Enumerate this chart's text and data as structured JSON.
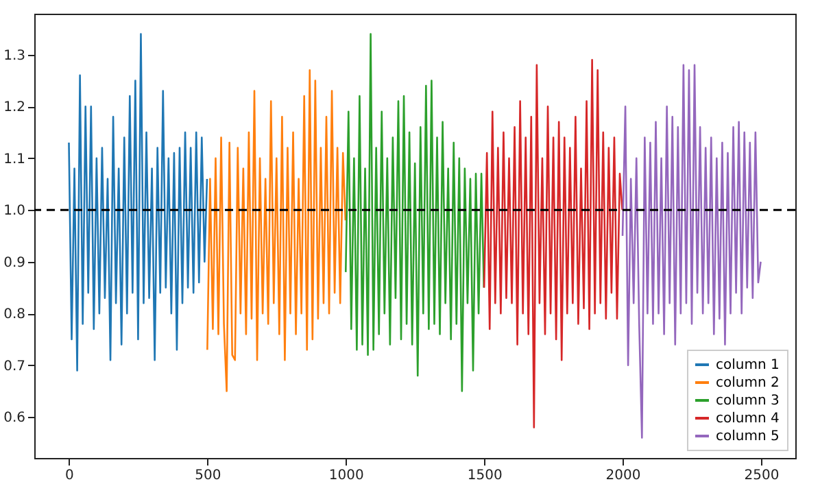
{
  "chart_data": {
    "type": "line",
    "xlim": [
      -125,
      2624
    ],
    "ylim": [
      0.521,
      1.379
    ],
    "xticks": [
      0,
      500,
      1000,
      1500,
      2000,
      2500
    ],
    "yticks": [
      0.6,
      0.7,
      0.8,
      0.9,
      {
        "value": 1,
        "label": "1.0"
      },
      1.1,
      1.2,
      1.3
    ],
    "grid": false,
    "legend": "bottom right",
    "line_style": "solid",
    "marker": "none",
    "ref_lines": [
      {
        "axis": "y",
        "value": 1.0,
        "color": "#000000",
        "line_style": "dashed"
      }
    ],
    "series": [
      {
        "name": "column 1",
        "color": "#1f77b4",
        "x": [
          0,
          10,
          20,
          30,
          40,
          50,
          60,
          70,
          80,
          90,
          100,
          110,
          120,
          130,
          140,
          150,
          160,
          170,
          180,
          190,
          200,
          210,
          220,
          230,
          240,
          250,
          260,
          270,
          280,
          290,
          300,
          310,
          320,
          330,
          340,
          350,
          360,
          370,
          380,
          390,
          400,
          410,
          420,
          430,
          440,
          450,
          460,
          470,
          480,
          490,
          499
        ],
        "values": [
          1.13,
          0.75,
          1.08,
          0.69,
          1.26,
          0.78,
          1.2,
          0.84,
          1.2,
          0.77,
          1.1,
          0.8,
          1.12,
          0.83,
          1.06,
          0.71,
          1.18,
          0.82,
          1.08,
          0.74,
          1.14,
          0.8,
          1.22,
          0.84,
          1.25,
          0.75,
          1.34,
          0.82,
          1.15,
          0.83,
          1.08,
          0.71,
          1.12,
          0.84,
          1.23,
          0.85,
          1.1,
          0.8,
          1.11,
          0.73,
          1.12,
          0.82,
          1.15,
          0.85,
          1.12,
          0.84,
          1.15,
          0.86,
          1.14,
          0.9,
          1.06
        ]
      },
      {
        "name": "column 2",
        "color": "#ff7f0e",
        "x": [
          500,
          510,
          520,
          530,
          540,
          550,
          560,
          570,
          580,
          590,
          600,
          610,
          620,
          630,
          640,
          650,
          660,
          670,
          680,
          690,
          700,
          710,
          720,
          730,
          740,
          750,
          760,
          770,
          780,
          790,
          800,
          810,
          820,
          830,
          840,
          850,
          860,
          870,
          880,
          890,
          900,
          910,
          920,
          930,
          940,
          950,
          960,
          970,
          980,
          990,
          999
        ],
        "values": [
          0.73,
          1.06,
          0.77,
          1.1,
          0.76,
          1.14,
          0.78,
          0.65,
          1.13,
          0.72,
          0.71,
          1.12,
          0.8,
          1.08,
          0.76,
          1.15,
          0.79,
          1.23,
          0.71,
          1.1,
          0.8,
          1.06,
          0.78,
          1.21,
          0.82,
          1.1,
          0.76,
          1.18,
          0.71,
          1.12,
          0.8,
          1.15,
          0.76,
          1.06,
          0.8,
          1.22,
          0.73,
          1.27,
          0.75,
          1.25,
          0.79,
          1.12,
          0.82,
          1.18,
          0.8,
          1.23,
          0.84,
          1.12,
          0.82,
          1.11,
          0.98
        ]
      },
      {
        "name": "column 3",
        "color": "#2ca02c",
        "x": [
          1000,
          1010,
          1020,
          1030,
          1040,
          1050,
          1060,
          1070,
          1080,
          1090,
          1100,
          1110,
          1120,
          1130,
          1140,
          1150,
          1160,
          1170,
          1180,
          1190,
          1200,
          1210,
          1220,
          1230,
          1240,
          1250,
          1260,
          1270,
          1280,
          1290,
          1300,
          1310,
          1320,
          1330,
          1340,
          1350,
          1360,
          1370,
          1380,
          1390,
          1400,
          1410,
          1420,
          1430,
          1440,
          1450,
          1460,
          1470,
          1480,
          1490,
          1499
        ],
        "values": [
          0.88,
          1.19,
          0.77,
          1.1,
          0.73,
          1.22,
          0.74,
          1.08,
          0.72,
          1.34,
          0.73,
          1.12,
          0.76,
          1.19,
          0.8,
          1.1,
          0.74,
          1.14,
          0.83,
          1.21,
          0.75,
          1.22,
          0.78,
          1.15,
          0.74,
          1.09,
          0.68,
          1.16,
          0.8,
          1.24,
          0.77,
          1.25,
          0.78,
          1.14,
          0.76,
          1.17,
          0.82,
          1.08,
          0.75,
          1.13,
          0.78,
          1.1,
          0.65,
          1.08,
          0.82,
          1.06,
          0.69,
          1.07,
          0.8,
          1.07,
          0.85
        ]
      },
      {
        "name": "column 4",
        "color": "#d62728",
        "x": [
          1500,
          1510,
          1520,
          1530,
          1540,
          1550,
          1560,
          1570,
          1580,
          1590,
          1600,
          1610,
          1620,
          1630,
          1640,
          1650,
          1660,
          1670,
          1680,
          1690,
          1700,
          1710,
          1720,
          1730,
          1740,
          1750,
          1760,
          1770,
          1780,
          1790,
          1800,
          1810,
          1820,
          1830,
          1840,
          1850,
          1860,
          1870,
          1880,
          1890,
          1900,
          1910,
          1920,
          1930,
          1940,
          1950,
          1960,
          1970,
          1980,
          1990,
          1999
        ],
        "values": [
          0.85,
          1.11,
          0.77,
          1.19,
          0.82,
          1.12,
          0.8,
          1.15,
          0.83,
          1.1,
          0.82,
          1.16,
          0.74,
          1.21,
          0.8,
          1.14,
          0.76,
          1.18,
          0.58,
          1.28,
          0.82,
          1.1,
          0.76,
          1.2,
          0.8,
          1.14,
          0.75,
          1.17,
          0.71,
          1.14,
          0.8,
          1.12,
          0.82,
          1.18,
          0.78,
          1.08,
          0.81,
          1.21,
          0.77,
          1.29,
          0.8,
          1.27,
          0.82,
          1.15,
          0.79,
          1.12,
          0.84,
          1.14,
          0.79,
          1.07,
          1.0
        ]
      },
      {
        "name": "column 5",
        "color": "#9467bd",
        "x": [
          2000,
          2010,
          2020,
          2030,
          2040,
          2050,
          2060,
          2070,
          2080,
          2090,
          2100,
          2110,
          2120,
          2130,
          2140,
          2150,
          2160,
          2170,
          2180,
          2190,
          2200,
          2210,
          2220,
          2230,
          2240,
          2250,
          2260,
          2270,
          2280,
          2290,
          2300,
          2310,
          2320,
          2330,
          2340,
          2350,
          2360,
          2370,
          2380,
          2390,
          2400,
          2410,
          2420,
          2430,
          2440,
          2450,
          2460,
          2470,
          2480,
          2490,
          2499
        ],
        "values": [
          0.95,
          1.2,
          0.7,
          1.06,
          0.82,
          1.1,
          0.78,
          0.56,
          1.14,
          0.8,
          1.13,
          0.78,
          1.17,
          0.8,
          1.1,
          0.76,
          1.2,
          0.82,
          1.18,
          0.74,
          1.16,
          0.8,
          1.28,
          0.82,
          1.27,
          0.78,
          1.28,
          0.84,
          1.16,
          0.8,
          1.12,
          0.82,
          1.14,
          0.76,
          1.1,
          0.79,
          1.13,
          0.74,
          1.11,
          0.8,
          1.16,
          0.84,
          1.17,
          0.8,
          1.15,
          0.85,
          1.13,
          0.83,
          1.15,
          0.86,
          0.9
        ]
      }
    ]
  }
}
